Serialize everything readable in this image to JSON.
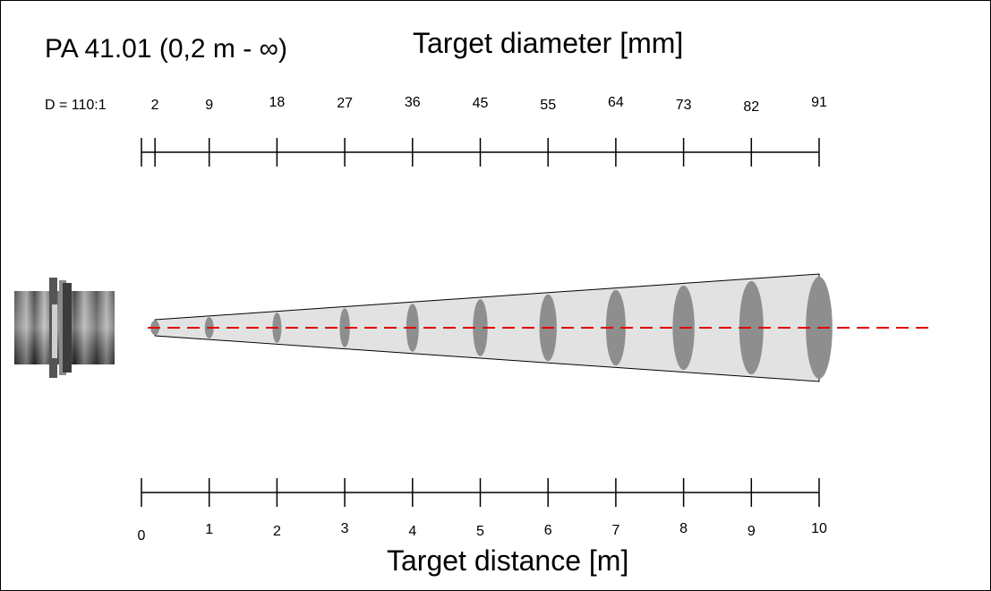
{
  "header": {
    "model": "PA 41.01 (0,2 m - ∞)",
    "diameter_axis_title": "Target diameter [mm]",
    "distance_axis_title": "Target distance [m]",
    "ratio_label": "D = 110:1"
  },
  "diameter_scale": {
    "labels": [
      "2",
      "9",
      "18",
      "27",
      "36",
      "45",
      "55",
      "64",
      "73",
      "82",
      "91"
    ],
    "at_distance_m": [
      0.2,
      1,
      2,
      3,
      4,
      5,
      6,
      7,
      8,
      9,
      10
    ]
  },
  "distance_scale": {
    "labels": [
      "0",
      "1",
      "2",
      "3",
      "4",
      "5",
      "6",
      "7",
      "8",
      "9",
      "10"
    ],
    "values": [
      0,
      1,
      2,
      3,
      4,
      5,
      6,
      7,
      8,
      9,
      10
    ]
  },
  "colors": {
    "axis_line": "#000000",
    "cone_fill": "#e2e2e2",
    "spot_fill": "#8e8e8e",
    "center_line": "#e00000",
    "sensor_body": "#6f6f6f"
  },
  "sensor_icon": "ir-sensor-icon"
}
